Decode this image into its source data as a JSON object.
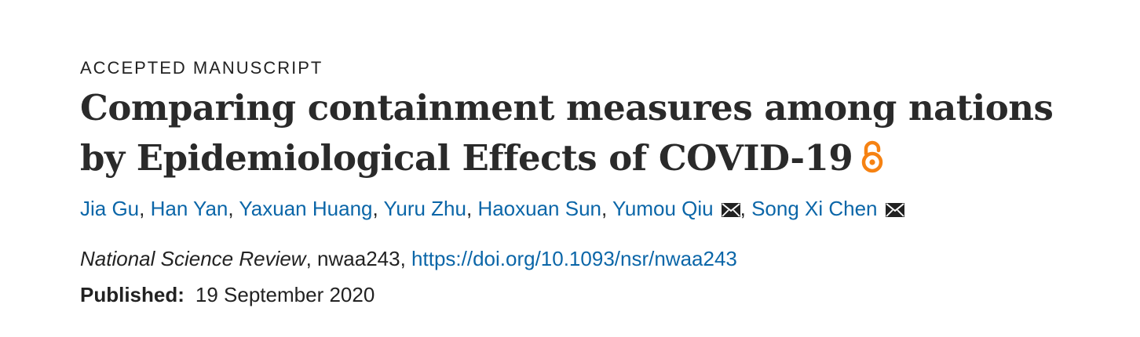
{
  "article": {
    "category": "ACCEPTED MANUSCRIPT",
    "title_line1": "Comparing containment measures among nations",
    "title_line2": "by Epidemiological Effects of COVID-19",
    "authors": [
      {
        "name": "Jia Gu",
        "separator": ", "
      },
      {
        "name": "Han Yan",
        "separator": ", "
      },
      {
        "name": "Yaxuan Huang",
        "separator": ", "
      },
      {
        "name": "Yuru Zhu",
        "separator": ", "
      },
      {
        "name": "Haoxuan Sun",
        "separator": ", "
      },
      {
        "name": "Yumou Qiu",
        "separator": ", "
      },
      {
        "name": "Song Xi Chen",
        "separator": ""
      }
    ],
    "journal": "National Science Review",
    "article_id": ", nwaa243, ",
    "doi": "https://doi.org/10.1093/nsr/nwaa243",
    "published_label": "Published:",
    "published_date": "19 September 2020"
  },
  "icons": {
    "open_access": "open-access-icon",
    "mail": "mail-icon"
  },
  "colors": {
    "link": "#0b66a8",
    "open_access": "#f68212",
    "text": "#222222"
  }
}
